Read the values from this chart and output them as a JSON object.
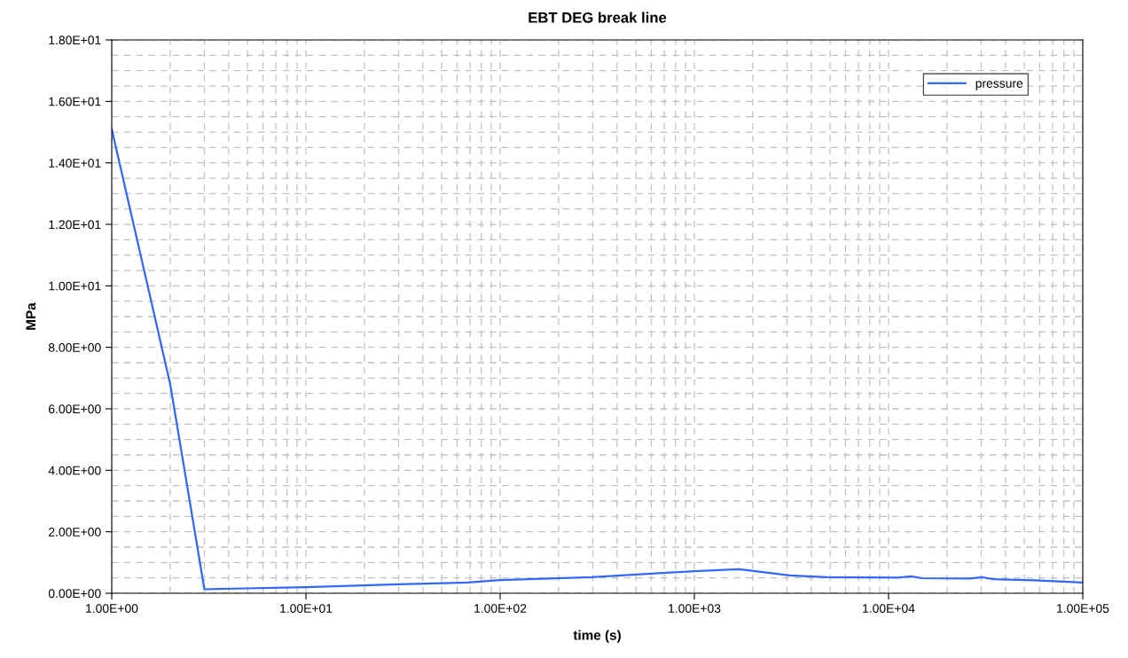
{
  "chart_data": {
    "type": "line",
    "title": "EBT DEG break line",
    "xlabel": "time (s)",
    "ylabel": "MPa",
    "log": "x",
    "xlim": [
      1,
      100000
    ],
    "xticks": [
      {
        "value": 1,
        "label": "1.00E+00"
      },
      {
        "value": 10,
        "label": "1.00E+01"
      },
      {
        "value": 100,
        "label": "1.00E+02"
      },
      {
        "value": 1000,
        "label": "1.00E+03"
      },
      {
        "value": 10000,
        "label": "1.00E+04"
      },
      {
        "value": 100000,
        "label": "1.00E+05"
      }
    ],
    "ylim": [
      0,
      18
    ],
    "yticks": [
      {
        "value": 0,
        "label": "0.00E+00"
      },
      {
        "value": 2,
        "label": "2.00E+00"
      },
      {
        "value": 4,
        "label": "4.00E+00"
      },
      {
        "value": 6,
        "label": "6.00E+00"
      },
      {
        "value": 8,
        "label": "8.00E+00"
      },
      {
        "value": 10,
        "label": "1.00E+01"
      },
      {
        "value": 12,
        "label": "1.20E+01"
      },
      {
        "value": 14,
        "label": "1.40E+01"
      },
      {
        "value": 16,
        "label": "1.60E+01"
      },
      {
        "value": 18,
        "label": "1.80E+01"
      }
    ],
    "grid": true,
    "legend": "top right",
    "line_style": "solid",
    "marker": "none",
    "series": [
      {
        "name": "pressure",
        "color": "#3366ff",
        "x": [
          1,
          2,
          3,
          10,
          30,
          68,
          100,
          295,
          1000,
          1700,
          3100,
          4800,
          11200,
          13000,
          14900,
          26000,
          30500,
          34500,
          56000,
          100000
        ],
        "values": [
          15.1,
          6.8,
          0.13,
          0.2,
          0.29,
          0.35,
          0.43,
          0.52,
          0.72,
          0.78,
          0.58,
          0.52,
          0.51,
          0.55,
          0.49,
          0.48,
          0.52,
          0.46,
          0.42,
          0.35
        ]
      }
    ]
  }
}
